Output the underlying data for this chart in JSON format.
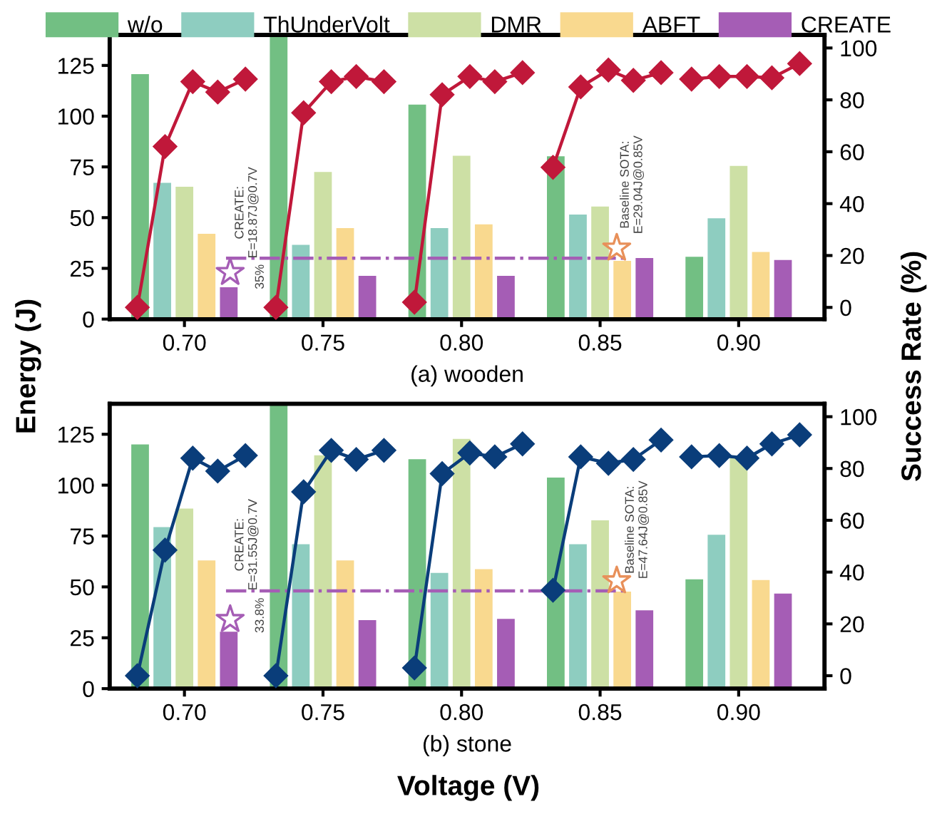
{
  "chart_data": [
    {
      "type": "bar",
      "title": "(a) wooden",
      "x": [
        0.7,
        0.75,
        0.8,
        0.85,
        0.9
      ],
      "xlim": [
        0.673,
        0.931
      ],
      "xticks": [
        {
          "value": 0.7,
          "label": "0.70"
        },
        {
          "value": 0.75,
          "label": "0.75"
        },
        {
          "value": 0.8,
          "label": "0.80"
        },
        {
          "value": 0.85,
          "label": "0.85"
        },
        {
          "value": 0.9,
          "label": "0.90"
        }
      ],
      "ylim": [
        0,
        140
      ],
      "yticks": [
        0,
        25,
        50,
        75,
        100,
        125
      ],
      "y2lim": [
        -4.5,
        105
      ],
      "y2ticks": [
        0,
        20,
        40,
        60,
        80,
        100
      ],
      "legend": "top",
      "grid": false,
      "series": [
        {
          "name": "w/o",
          "color": "#72bf83",
          "values": [
            121,
            140,
            106,
            80.5,
            31
          ]
        },
        {
          "name": "ThUnderVolt",
          "color": "#8ecdc0",
          "values": [
            67.4,
            36.9,
            45.1,
            51.8,
            50
          ]
        },
        {
          "name": "DMR",
          "color": "#cde0a5",
          "values": [
            65.5,
            72.8,
            80.8,
            55.8,
            75.8
          ]
        },
        {
          "name": "ABFT",
          "color": "#f9d98f",
          "values": [
            42.3,
            45.1,
            47,
            29,
            33.4
          ]
        },
        {
          "name": "CREATE",
          "color": "#a55db5",
          "values": [
            16,
            21.6,
            21.6,
            30.4,
            29.4
          ]
        },
        {
          "type": "line",
          "axis": "y2",
          "color": "#c0183a",
          "marker": "diamond",
          "x": [
            0.683,
            0.693,
            0.703,
            0.712,
            0.722
          ],
          "values": [
            0,
            62,
            87,
            83,
            88
          ]
        },
        {
          "type": "line",
          "axis": "y2",
          "color": "#c0183a",
          "marker": "diamond",
          "x": [
            0.733,
            0.743,
            0.753,
            0.762,
            0.772
          ],
          "values": [
            0,
            75,
            87,
            89,
            87
          ]
        },
        {
          "type": "line",
          "axis": "y2",
          "color": "#c0183a",
          "marker": "diamond",
          "x": [
            0.783,
            0.793,
            0.803,
            0.812,
            0.822
          ],
          "values": [
            2,
            82,
            89,
            87,
            90.5
          ]
        },
        {
          "type": "line",
          "axis": "y2",
          "color": "#c0183a",
          "marker": "diamond",
          "x": [
            0.833,
            0.843,
            0.853,
            0.862,
            0.872
          ],
          "values": [
            54,
            85,
            91.5,
            87.5,
            90.5
          ]
        },
        {
          "type": "line",
          "axis": "y2",
          "color": "#c0183a",
          "marker": "diamond",
          "x": [
            0.883,
            0.893,
            0.903,
            0.912,
            0.922
          ],
          "values": [
            88,
            89,
            89,
            88.5,
            94
          ]
        },
        {
          "type": "line",
          "color": "#a55db5",
          "line_style": "dashed",
          "marker": "none",
          "x": [
            0.715,
            0.86
          ],
          "values": [
            30,
            30
          ]
        },
        {
          "type": "scatter",
          "color": "#a55db5",
          "marker": "star",
          "x": [
            0.7165
          ],
          "values": [
            23
          ]
        },
        {
          "type": "scatter",
          "color": "#e8905a",
          "marker": "star",
          "x": [
            0.856
          ],
          "values": [
            35
          ]
        }
      ],
      "annotations": [
        "CREATE:\nE=18.87J@0.7V",
        "35%",
        "Baseline SOTA:\nE=29.04J@0.85V"
      ]
    },
    {
      "type": "bar",
      "title": "(b) stone",
      "xlabel": "Voltage (V)",
      "ylabel": "Energy (J)",
      "y2label": "Success Rate (%)",
      "x": [
        0.7,
        0.75,
        0.8,
        0.85,
        0.9
      ],
      "xlim": [
        0.673,
        0.931
      ],
      "xticks": [
        {
          "value": 0.7,
          "label": "0.70"
        },
        {
          "value": 0.75,
          "label": "0.75"
        },
        {
          "value": 0.8,
          "label": "0.80"
        },
        {
          "value": 0.85,
          "label": "0.85"
        },
        {
          "value": 0.9,
          "label": "0.90"
        }
      ],
      "ylim": [
        0,
        140
      ],
      "yticks": [
        0,
        25,
        50,
        75,
        100,
        125
      ],
      "y2lim": [
        -5,
        105
      ],
      "y2ticks": [
        0,
        20,
        40,
        60,
        80,
        100
      ],
      "grid": false,
      "series": [
        {
          "color": "#72bf83",
          "values": [
            120.3,
            140,
            113,
            104,
            54
          ]
        },
        {
          "color": "#8ecdc0",
          "values": [
            79.7,
            71.3,
            57.2,
            71.3,
            75.9
          ]
        },
        {
          "color": "#cde0a5",
          "values": [
            88.8,
            115,
            123,
            83,
            114.7
          ]
        },
        {
          "color": "#f9d98f",
          "values": [
            63.3,
            63.3,
            59,
            48,
            53.7
          ]
        },
        {
          "color": "#a55db5",
          "values": [
            28.3,
            34,
            34.6,
            38.8,
            47
          ]
        },
        {
          "type": "line",
          "axis": "y2",
          "color": "#0a3d7a",
          "marker": "diamond",
          "x": [
            0.683,
            0.693,
            0.703,
            0.712,
            0.722
          ],
          "values": [
            0,
            48.5,
            84,
            79,
            85
          ]
        },
        {
          "type": "line",
          "axis": "y2",
          "color": "#0a3d7a",
          "marker": "diamond",
          "x": [
            0.733,
            0.743,
            0.753,
            0.762,
            0.772
          ],
          "values": [
            0,
            71,
            87,
            83.5,
            87
          ]
        },
        {
          "type": "line",
          "axis": "y2",
          "color": "#0a3d7a",
          "marker": "diamond",
          "x": [
            0.783,
            0.793,
            0.803,
            0.812,
            0.822
          ],
          "values": [
            3,
            78,
            86,
            84.5,
            89.5
          ]
        },
        {
          "type": "line",
          "axis": "y2",
          "color": "#0a3d7a",
          "marker": "diamond",
          "x": [
            0.833,
            0.843,
            0.853,
            0.862,
            0.872
          ],
          "values": [
            33,
            84.5,
            82,
            83.5,
            91
          ]
        },
        {
          "type": "line",
          "axis": "y2",
          "color": "#0a3d7a",
          "marker": "diamond",
          "x": [
            0.883,
            0.893,
            0.903,
            0.912,
            0.922
          ],
          "values": [
            84.5,
            85,
            84,
            89.5,
            93
          ]
        },
        {
          "type": "line",
          "color": "#a55db5",
          "line_style": "dashed",
          "marker": "none",
          "x": [
            0.715,
            0.86
          ],
          "values": [
            48,
            48
          ]
        },
        {
          "type": "scatter",
          "color": "#a55db5",
          "marker": "star",
          "x": [
            0.7165
          ],
          "values": [
            34
          ]
        },
        {
          "type": "scatter",
          "color": "#e8905a",
          "marker": "star",
          "x": [
            0.856
          ],
          "values": [
            53
          ]
        }
      ],
      "annotations": [
        "CREATE:\nE=31.55J@0.7V",
        "33.8%",
        "Baseline SOTA:\nE=47.64J@0.85V"
      ]
    }
  ]
}
